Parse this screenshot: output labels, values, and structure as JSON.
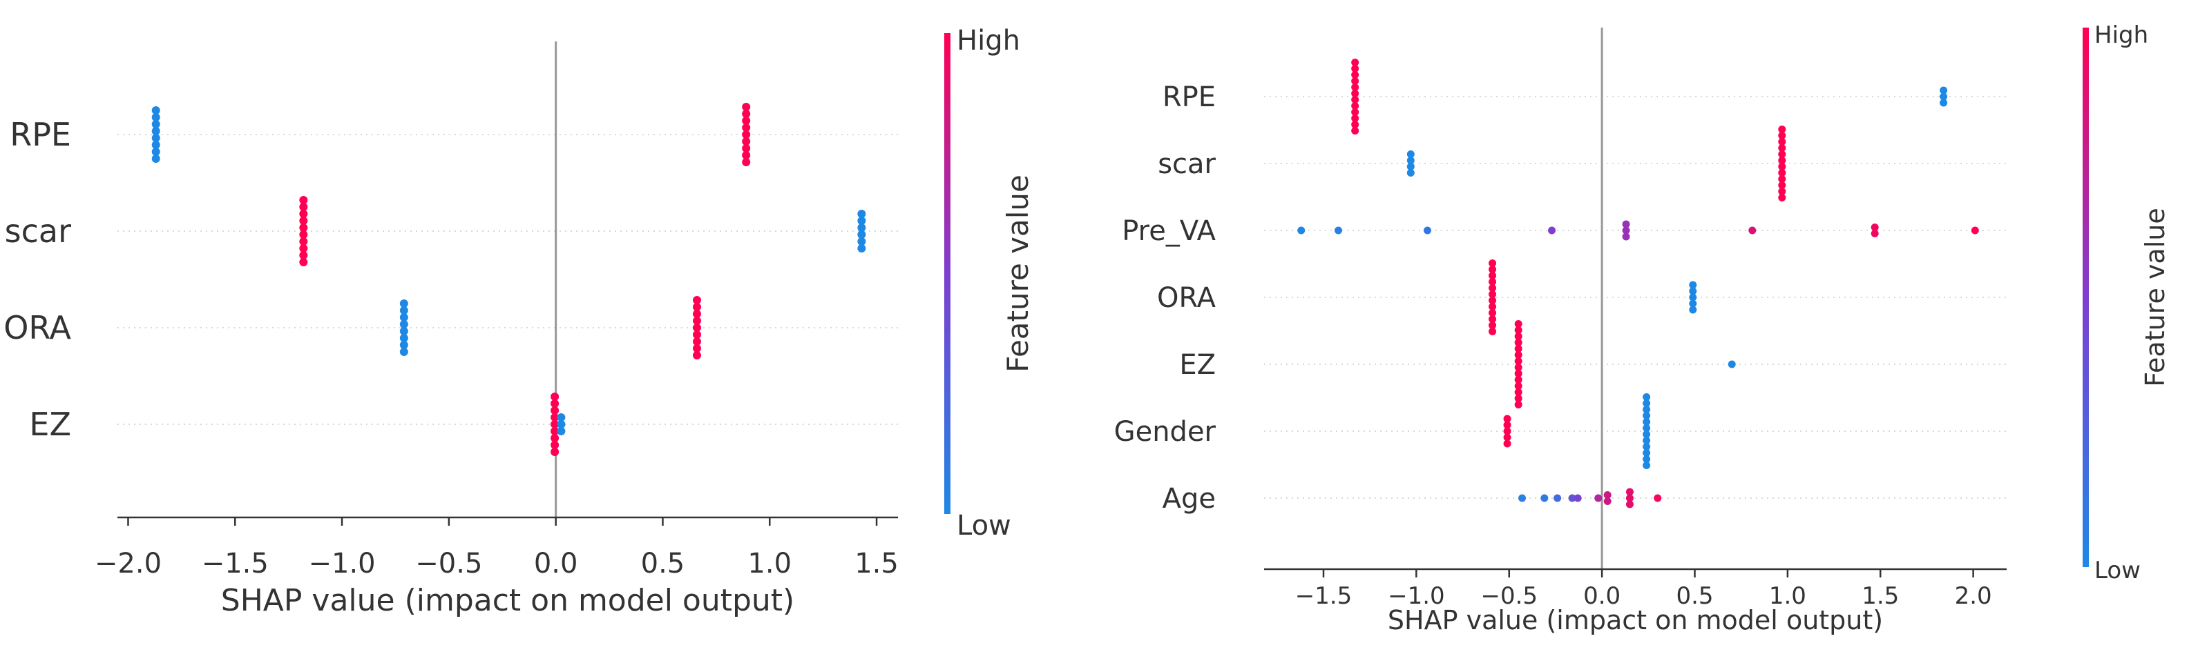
{
  "chart_data": [
    {
      "type": "scatter",
      "subtype": "shap-beeswarm",
      "title": "",
      "xlabel": "SHAP value (impact on model output)",
      "ylabel": "",
      "xlim": [
        -2.05,
        1.6
      ],
      "xticks": [
        -2.0,
        -1.5,
        -1.0,
        -0.5,
        0.0,
        0.5,
        1.0,
        1.5
      ],
      "xtick_labels": [
        "−2.0",
        "−1.5",
        "−1.0",
        "−0.5",
        "0.0",
        "0.5",
        "1.0",
        "1.5"
      ],
      "features": [
        {
          "name": "RPE",
          "points": [
            {
              "x": -1.87,
              "v": 0,
              "n": 8
            },
            {
              "x": 0.89,
              "v": 1,
              "n": 9
            }
          ]
        },
        {
          "name": "scar",
          "points": [
            {
              "x": -1.18,
              "v": 1,
              "n": 10
            },
            {
              "x": 1.43,
              "v": 0,
              "n": 6
            }
          ]
        },
        {
          "name": "ORA",
          "points": [
            {
              "x": -0.71,
              "v": 0,
              "n": 8
            },
            {
              "x": 0.66,
              "v": 1,
              "n": 9
            }
          ]
        },
        {
          "name": "EZ",
          "points": [
            {
              "x": -0.005,
              "v": 1,
              "n": 9
            },
            {
              "x": 0.025,
              "v": 0,
              "n": 3
            }
          ]
        }
      ],
      "colorbar": {
        "label": "Feature value",
        "high_label": "High",
        "low_label": "Low"
      }
    },
    {
      "type": "scatter",
      "subtype": "shap-beeswarm",
      "title": "",
      "xlabel": "SHAP value (impact on model output)",
      "ylabel": "",
      "xlim": [
        -1.82,
        2.18
      ],
      "xticks": [
        -1.5,
        -1.0,
        -0.5,
        0.0,
        0.5,
        1.0,
        1.5,
        2.0
      ],
      "xtick_labels": [
        "−1.5",
        "−1.0",
        "−0.5",
        "0.0",
        "0.5",
        "1.0",
        "1.5",
        "2.0"
      ],
      "features": [
        {
          "name": "RPE",
          "points": [
            {
              "x": -1.33,
              "v": 1,
              "n": 12
            },
            {
              "x": 1.84,
              "v": 0,
              "n": 3
            }
          ]
        },
        {
          "name": "scar",
          "points": [
            {
              "x": -1.03,
              "v": 0,
              "n": 4
            },
            {
              "x": 0.97,
              "v": 1,
              "n": 12
            }
          ]
        },
        {
          "name": "Pre_VA",
          "points": [
            {
              "x": -1.62,
              "v": 0.0,
              "n": 1
            },
            {
              "x": -1.42,
              "v": 0.05,
              "n": 1
            },
            {
              "x": -0.94,
              "v": 0.1,
              "n": 1
            },
            {
              "x": -0.27,
              "v": 0.5,
              "n": 1
            },
            {
              "x": 0.13,
              "v": 0.6,
              "n": 3
            },
            {
              "x": 0.81,
              "v": 0.85,
              "n": 1
            },
            {
              "x": 1.47,
              "v": 0.95,
              "n": 2
            },
            {
              "x": 2.01,
              "v": 1.0,
              "n": 1
            }
          ]
        },
        {
          "name": "ORA",
          "points": [
            {
              "x": -0.59,
              "v": 1,
              "n": 12
            },
            {
              "x": 0.49,
              "v": 0,
              "n": 5
            }
          ]
        },
        {
          "name": "EZ",
          "points": [
            {
              "x": -0.45,
              "v": 1,
              "n": 14
            },
            {
              "x": 0.7,
              "v": 0,
              "n": 1
            }
          ]
        },
        {
          "name": "Gender",
          "points": [
            {
              "x": -0.51,
              "v": 1,
              "n": 5
            },
            {
              "x": 0.24,
              "v": 0,
              "n": 12
            }
          ]
        },
        {
          "name": "Age",
          "points": [
            {
              "x": -0.43,
              "v": 0.05,
              "n": 1
            },
            {
              "x": -0.31,
              "v": 0.1,
              "n": 1
            },
            {
              "x": -0.24,
              "v": 0.2,
              "n": 1
            },
            {
              "x": -0.16,
              "v": 0.35,
              "n": 1
            },
            {
              "x": -0.13,
              "v": 0.45,
              "n": 1
            },
            {
              "x": -0.02,
              "v": 0.7,
              "n": 1
            },
            {
              "x": 0.03,
              "v": 0.8,
              "n": 2
            },
            {
              "x": 0.15,
              "v": 0.9,
              "n": 3
            },
            {
              "x": 0.3,
              "v": 0.95,
              "n": 1
            }
          ]
        }
      ],
      "colorbar": {
        "label": "Feature value",
        "high_label": "High",
        "low_label": "Low"
      }
    }
  ],
  "colors": {
    "low": "#1e88e5",
    "mid": "#7e3fd0",
    "high": "#ff0052",
    "zero_line": "#999999",
    "grid": "#cccccc",
    "axis": "#333333"
  }
}
